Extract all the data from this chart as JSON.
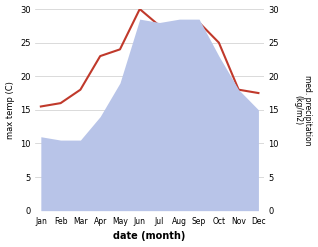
{
  "months": [
    "Jan",
    "Feb",
    "Mar",
    "Apr",
    "May",
    "Jun",
    "Jul",
    "Aug",
    "Sep",
    "Oct",
    "Nov",
    "Dec"
  ],
  "max_temp": [
    15.5,
    16.0,
    18.0,
    23.0,
    24.0,
    30.0,
    27.5,
    27.5,
    28.0,
    25.0,
    18.0,
    17.5
  ],
  "precipitation": [
    11.0,
    10.5,
    10.5,
    14.0,
    19.0,
    28.5,
    28.0,
    28.5,
    28.5,
    23.0,
    18.0,
    15.0
  ],
  "temp_color": "#c0392b",
  "precip_fill_color": "#b8c4e8",
  "ylabel_left": "max temp (C)",
  "ylabel_right": "med. precipitation\n(kg/m2)",
  "xlabel": "date (month)",
  "ylim_left": [
    0,
    30
  ],
  "ylim_right": [
    0,
    30
  ],
  "yticks": [
    0,
    5,
    10,
    15,
    20,
    25,
    30
  ],
  "background_color": "#ffffff",
  "grid_color": "#cccccc"
}
